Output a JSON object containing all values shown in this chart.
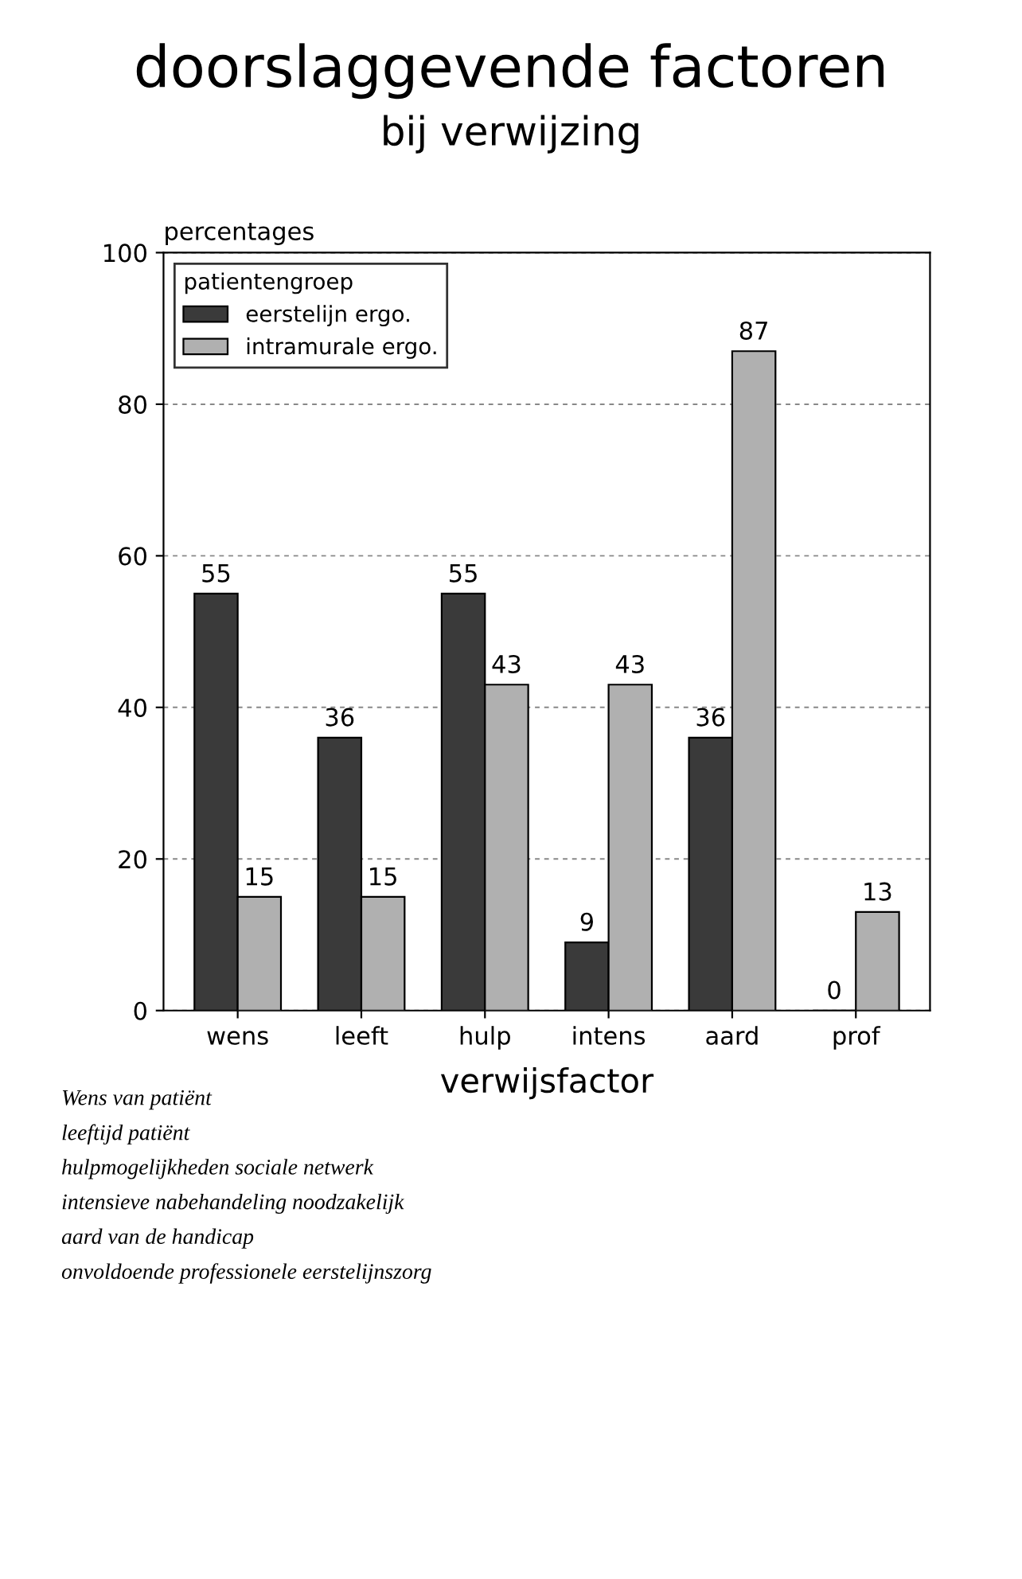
{
  "chart_data": {
    "type": "bar",
    "title": "doorslaggevende factoren",
    "subtitle": "bij verwijzing",
    "ylabel": "percentages",
    "xlabel": "verwijsfactor",
    "legend_title": "patientengroep",
    "categories": [
      "wens",
      "leeft",
      "hulp",
      "intens",
      "aard",
      "prof"
    ],
    "series": [
      {
        "name": "eerstelijn ergo.",
        "color": "#3a3a3a",
        "values": [
          55,
          36,
          55,
          9,
          36,
          0
        ]
      },
      {
        "name": "intramurale ergo.",
        "color": "#b0b0b0",
        "values": [
          15,
          15,
          43,
          43,
          87,
          13
        ]
      }
    ],
    "ylim": [
      0,
      100
    ],
    "yticks": [
      0,
      20,
      40,
      60,
      80,
      100
    ],
    "grid": "y",
    "legend": "top left",
    "data_labels": true,
    "annotations": [
      "Wens van patiënt",
      "leeftijd patiënt",
      "hulpmogelijkheden sociale netwerk",
      "intensieve nabehandeling noodzakelijk",
      "aard van de handicap",
      "onvoldoende professionele eerstelijnszorg"
    ]
  }
}
